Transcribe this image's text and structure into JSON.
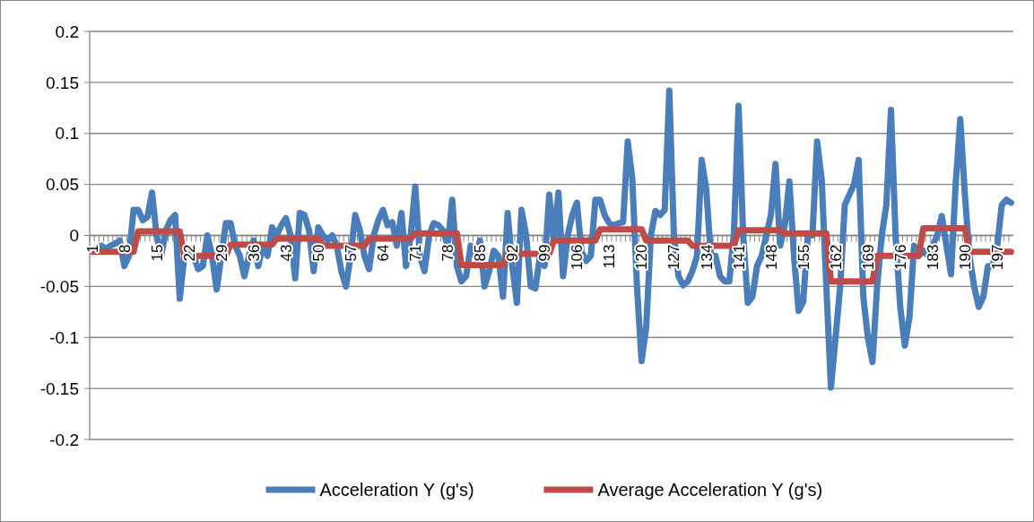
{
  "chart_data": {
    "type": "line",
    "categories": [
      "1",
      null,
      null,
      null,
      null,
      null,
      null,
      "8",
      null,
      null,
      null,
      null,
      null,
      null,
      "15",
      null,
      null,
      null,
      null,
      null,
      null,
      "22",
      null,
      null,
      null,
      null,
      null,
      null,
      "29",
      null,
      null,
      null,
      null,
      null,
      null,
      "36",
      null,
      null,
      null,
      null,
      null,
      null,
      "43",
      null,
      null,
      null,
      null,
      null,
      null,
      "50",
      null,
      null,
      null,
      null,
      null,
      null,
      "57",
      null,
      null,
      null,
      null,
      null,
      null,
      "64",
      null,
      null,
      null,
      null,
      null,
      null,
      "71",
      null,
      null,
      null,
      null,
      null,
      null,
      "78",
      null,
      null,
      null,
      null,
      null,
      null,
      "85",
      null,
      null,
      null,
      null,
      null,
      null,
      "92",
      null,
      null,
      null,
      null,
      null,
      null,
      "99",
      null,
      null,
      null,
      null,
      null,
      null,
      "106",
      null,
      null,
      null,
      null,
      null,
      null,
      "113",
      null,
      null,
      null,
      null,
      null,
      null,
      "120",
      null,
      null,
      null,
      null,
      null,
      null,
      "127",
      null,
      null,
      null,
      null,
      null,
      null,
      "134",
      null,
      null,
      null,
      null,
      null,
      null,
      "141",
      null,
      null,
      null,
      null,
      null,
      null,
      "148",
      null,
      null,
      null,
      null,
      null,
      null,
      "155",
      null,
      null,
      null,
      null,
      null,
      null,
      "162",
      null,
      null,
      null,
      null,
      null,
      null,
      "169",
      null,
      null,
      null,
      null,
      null,
      null,
      "176",
      null,
      null,
      null,
      null,
      null,
      null,
      "183",
      null,
      null,
      null,
      null,
      null,
      null,
      "190",
      null,
      null,
      null,
      null,
      null,
      null,
      "197",
      null,
      null,
      null
    ],
    "series": [
      {
        "name": "Acceleration Y (g's)",
        "color": "#4a7ebb",
        "values": [
          -0.015,
          -0.012,
          -0.01,
          -0.013,
          -0.01,
          -0.008,
          -0.005,
          -0.03,
          -0.02,
          0.025,
          0.025,
          0.015,
          0.018,
          0.042,
          0.0,
          -0.02,
          0.005,
          0.015,
          0.02,
          -0.062,
          -0.02,
          -0.015,
          -0.02,
          -0.033,
          -0.03,
          0.0,
          -0.02,
          -0.053,
          -0.02,
          0.012,
          0.012,
          -0.01,
          -0.02,
          -0.04,
          -0.02,
          -0.005,
          -0.03,
          -0.01,
          -0.02,
          0.008,
          0.0,
          0.01,
          0.017,
          0.0,
          -0.042,
          0.022,
          0.02,
          0.005,
          -0.035,
          0.008,
          0.0,
          -0.005,
          0.0,
          -0.01,
          -0.035,
          -0.05,
          -0.02,
          0.02,
          0.005,
          -0.02,
          -0.033,
          0.0,
          0.015,
          0.025,
          0.01,
          0.013,
          -0.01,
          0.022,
          -0.03,
          0.0,
          0.048,
          -0.02,
          -0.035,
          0.0,
          0.012,
          0.01,
          0.005,
          -0.01,
          0.035,
          -0.03,
          -0.045,
          -0.04,
          -0.01,
          -0.02,
          -0.005,
          -0.05,
          -0.035,
          -0.015,
          -0.02,
          -0.06,
          0.022,
          -0.03,
          -0.066,
          0.025,
          0.0,
          -0.05,
          -0.052,
          -0.02,
          -0.03,
          0.04,
          -0.005,
          0.042,
          -0.04,
          0.0,
          0.02,
          0.032,
          -0.016,
          -0.025,
          -0.02,
          0.035,
          0.035,
          0.02,
          0.012,
          0.01,
          0.012,
          0.013,
          0.092,
          0.055,
          -0.05,
          -0.123,
          -0.09,
          0.0,
          0.024,
          0.02,
          0.025,
          0.142,
          0.0,
          -0.04,
          -0.049,
          -0.045,
          -0.035,
          -0.02,
          0.074,
          0.045,
          -0.02,
          -0.02,
          -0.04,
          -0.045,
          -0.045,
          0.003,
          0.127,
          0.0,
          -0.066,
          -0.06,
          -0.03,
          -0.02,
          0.0,
          0.02,
          0.07,
          -0.01,
          0.01,
          0.053,
          -0.02,
          -0.074,
          -0.065,
          0.0,
          0.0,
          0.092,
          0.055,
          -0.05,
          -0.149,
          -0.1,
          -0.05,
          0.03,
          0.04,
          0.05,
          0.074,
          -0.06,
          -0.1,
          -0.124,
          -0.05,
          0.0,
          0.03,
          0.123,
          0.0,
          -0.07,
          -0.108,
          -0.08,
          -0.01,
          -0.02,
          -0.015,
          -0.02,
          -0.01,
          0.0,
          0.019,
          -0.01,
          -0.038,
          0.05,
          0.114,
          0.04,
          -0.02,
          -0.05,
          -0.07,
          -0.06,
          -0.03,
          -0.03,
          -0.01,
          0.03,
          0.035,
          0.032
        ]
      },
      {
        "name": "Average Acceleration Y (g's)",
        "color": "#be4b48",
        "values": [
          -0.016,
          -0.016,
          -0.016,
          -0.016,
          -0.016,
          -0.016,
          -0.016,
          -0.016,
          -0.016,
          -0.016,
          0.004,
          0.004,
          0.004,
          0.004,
          0.004,
          0.004,
          0.004,
          0.004,
          0.004,
          0.004,
          -0.02,
          -0.02,
          -0.02,
          -0.02,
          -0.02,
          -0.02,
          -0.02,
          -0.02,
          -0.02,
          -0.02,
          -0.009,
          -0.009,
          -0.009,
          -0.009,
          -0.009,
          -0.009,
          -0.009,
          -0.009,
          -0.009,
          -0.009,
          -0.003,
          -0.003,
          -0.003,
          -0.003,
          -0.003,
          -0.003,
          -0.003,
          -0.003,
          -0.003,
          -0.003,
          -0.01,
          -0.01,
          -0.01,
          -0.01,
          -0.01,
          -0.01,
          -0.01,
          -0.01,
          -0.01,
          -0.01,
          -0.003,
          -0.003,
          -0.003,
          -0.003,
          -0.003,
          -0.003,
          -0.003,
          -0.003,
          -0.003,
          -0.003,
          0.002,
          0.002,
          0.002,
          0.002,
          0.002,
          0.002,
          0.002,
          0.002,
          0.002,
          0.002,
          -0.029,
          -0.029,
          -0.029,
          -0.029,
          -0.029,
          -0.029,
          -0.029,
          -0.029,
          -0.029,
          -0.029,
          -0.018,
          -0.018,
          -0.018,
          -0.018,
          -0.018,
          -0.018,
          -0.018,
          -0.018,
          -0.018,
          -0.018,
          -0.005,
          -0.005,
          -0.005,
          -0.005,
          -0.005,
          -0.005,
          -0.005,
          -0.005,
          -0.005,
          -0.005,
          0.006,
          0.006,
          0.006,
          0.006,
          0.006,
          0.006,
          0.006,
          0.006,
          0.006,
          0.006,
          -0.005,
          -0.005,
          -0.005,
          -0.005,
          -0.005,
          -0.005,
          -0.005,
          -0.005,
          -0.005,
          -0.005,
          -0.01,
          -0.01,
          -0.01,
          -0.01,
          -0.01,
          -0.01,
          -0.01,
          -0.01,
          -0.01,
          -0.01,
          0.005,
          0.005,
          0.005,
          0.005,
          0.005,
          0.005,
          0.005,
          0.005,
          0.005,
          0.005,
          0.002,
          0.002,
          0.002,
          0.002,
          0.002,
          0.002,
          0.002,
          0.002,
          0.002,
          0.002,
          -0.045,
          -0.045,
          -0.045,
          -0.045,
          -0.045,
          -0.045,
          -0.045,
          -0.045,
          -0.045,
          -0.045,
          -0.02,
          -0.02,
          -0.02,
          -0.02,
          -0.02,
          -0.02,
          -0.02,
          -0.02,
          -0.02,
          -0.02,
          0.007,
          0.007,
          0.007,
          0.007,
          0.007,
          0.007,
          0.007,
          0.007,
          0.007,
          0.007,
          -0.016,
          -0.016,
          -0.016,
          -0.016,
          -0.016,
          -0.016,
          -0.016,
          -0.016,
          -0.016,
          -0.016
        ]
      }
    ],
    "ylim": [
      -0.2,
      0.2
    ],
    "yticks": [
      -0.2,
      -0.15,
      -0.1,
      -0.05,
      0,
      0.05,
      0.1,
      0.15,
      0.2
    ],
    "grid": "y",
    "legend": "bottom",
    "marker": "none",
    "line_style": "solid"
  }
}
